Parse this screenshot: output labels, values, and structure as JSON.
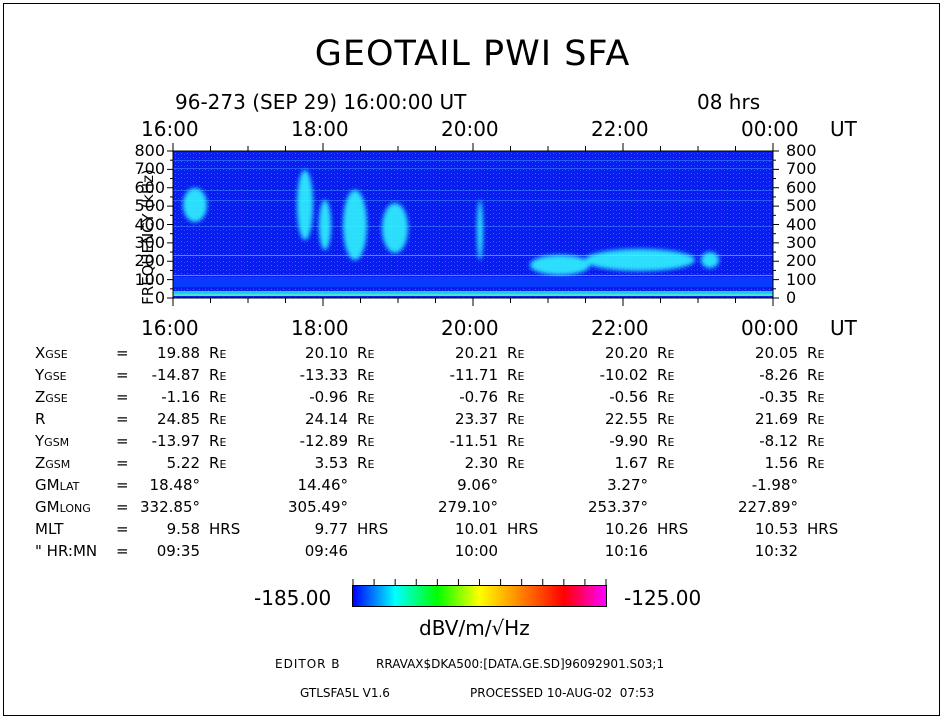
{
  "title": "GEOTAIL PWI SFA",
  "subtitle": "96-273 (SEP 29) 16:00:00 UT",
  "duration": "08 hrs",
  "colors": {
    "background": "#0000ff",
    "low": "#0033ff",
    "mid": "#00ffff",
    "colorbar_stops": [
      "#0000ff",
      "#00ffff",
      "#00ff00",
      "#ffff00",
      "#ff8000",
      "#ff0000",
      "#ff00ff"
    ]
  },
  "chart_data": {
    "type": "heatmap",
    "title": "GEOTAIL PWI SFA",
    "x_ticks": [
      "16:00",
      "18:00",
      "20:00",
      "22:00",
      "00:00"
    ],
    "x_unit": "UT",
    "ylabel": "FREQUENCY (kHz)",
    "y_ticks": [
      "800",
      "700",
      "600",
      "500",
      "400",
      "300",
      "200",
      "100",
      "0"
    ],
    "ylim": [
      0,
      800
    ],
    "colorbar": {
      "min": "-185.00",
      "max": "-125.00",
      "unit": "dBV/m/√Hz"
    }
  },
  "ephemeris": [
    {
      "label": "X",
      "sub": "GSE",
      "eq": "=",
      "values": [
        "19.88",
        "20.10",
        "20.21",
        "20.20",
        "20.05"
      ],
      "unit": "R",
      "unit_sub": "E"
    },
    {
      "label": "Y",
      "sub": "GSE",
      "eq": "=",
      "values": [
        "-14.87",
        "-13.33",
        "-11.71",
        "-10.02",
        "-8.26"
      ],
      "unit": "R",
      "unit_sub": "E"
    },
    {
      "label": "Z",
      "sub": "GSE",
      "eq": "=",
      "values": [
        "-1.16",
        "-0.96",
        "-0.76",
        "-0.56",
        "-0.35"
      ],
      "unit": "R",
      "unit_sub": "E"
    },
    {
      "label": "R",
      "sub": "",
      "eq": "=",
      "values": [
        "24.85",
        "24.14",
        "23.37",
        "22.55",
        "21.69"
      ],
      "unit": "R",
      "unit_sub": "E"
    },
    {
      "label": "Y",
      "sub": "GSM",
      "eq": "=",
      "values": [
        "-13.97",
        "-12.89",
        "-11.51",
        "-9.90",
        "-8.12"
      ],
      "unit": "R",
      "unit_sub": "E"
    },
    {
      "label": "Z",
      "sub": "GSM",
      "eq": "=",
      "values": [
        "5.22",
        "3.53",
        "2.30",
        "1.67",
        "1.56"
      ],
      "unit": "R",
      "unit_sub": "E"
    },
    {
      "label": "GM",
      "sub": "LAT",
      "eq": "=",
      "values": [
        "18.48°",
        "14.46°",
        "9.06°",
        "3.27°",
        "-1.98°"
      ],
      "unit": "",
      "unit_sub": ""
    },
    {
      "label": "GM",
      "sub": "LONG",
      "eq": "=",
      "values": [
        "332.85°",
        "305.49°",
        "279.10°",
        "253.37°",
        "227.89°"
      ],
      "unit": "",
      "unit_sub": ""
    },
    {
      "label": "MLT",
      "sub": "",
      "eq": "=",
      "values": [
        "9.58",
        "9.77",
        "10.01",
        "10.26",
        "10.53"
      ],
      "unit": "HRS",
      "unit_sub": ""
    },
    {
      "label": "\" HR:MN",
      "sub": "",
      "eq": "=",
      "values": [
        "09:35",
        "09:46",
        "10:00",
        "10:16",
        "10:32"
      ],
      "unit": "",
      "unit_sub": ""
    }
  ],
  "footer": {
    "editor": "EDITOR B",
    "path": "RRAVAX$DKA500:[DATA.GE.SD]96092901.S03;1",
    "version": "GTLSFA5L V1.6",
    "processed": "PROCESSED 10-AUG-02  07:53"
  }
}
